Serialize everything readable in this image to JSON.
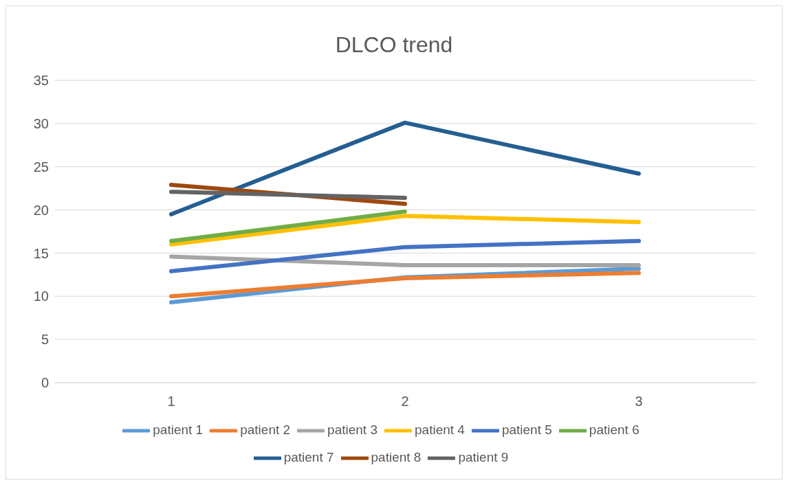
{
  "chart_data": {
    "type": "line",
    "title": "DLCO trend",
    "categories": [
      "1",
      "2",
      "3"
    ],
    "series": [
      {
        "name": "patient 1",
        "color": "#5b9bd5",
        "values": [
          9.3,
          12.2,
          13.2
        ]
      },
      {
        "name": "patient 2",
        "color": "#ed7d31",
        "values": [
          10.0,
          12.1,
          12.7
        ]
      },
      {
        "name": "patient 3",
        "color": "#a5a5a5",
        "values": [
          14.6,
          13.6,
          13.6
        ]
      },
      {
        "name": "patient 4",
        "color": "#ffc000",
        "values": [
          16.0,
          19.3,
          18.6
        ]
      },
      {
        "name": "patient 5",
        "color": "#4472c4",
        "values": [
          12.9,
          15.7,
          16.4
        ]
      },
      {
        "name": "patient 6",
        "color": "#70ad47",
        "values": [
          16.4,
          19.8,
          null
        ]
      },
      {
        "name": "patient 7",
        "color": "#255e91",
        "values": [
          19.5,
          30.1,
          24.2
        ]
      },
      {
        "name": "patient 8",
        "color": "#9e480e",
        "values": [
          22.9,
          20.7,
          null
        ]
      },
      {
        "name": "patient 9",
        "color": "#636363",
        "values": [
          22.1,
          21.4,
          null
        ]
      }
    ],
    "ylim": [
      0,
      35
    ],
    "yticks": [
      0,
      5,
      10,
      15,
      20,
      25,
      30,
      35
    ],
    "grid": "y",
    "legend": "bottom",
    "marker": "none",
    "line_style": "solid"
  }
}
